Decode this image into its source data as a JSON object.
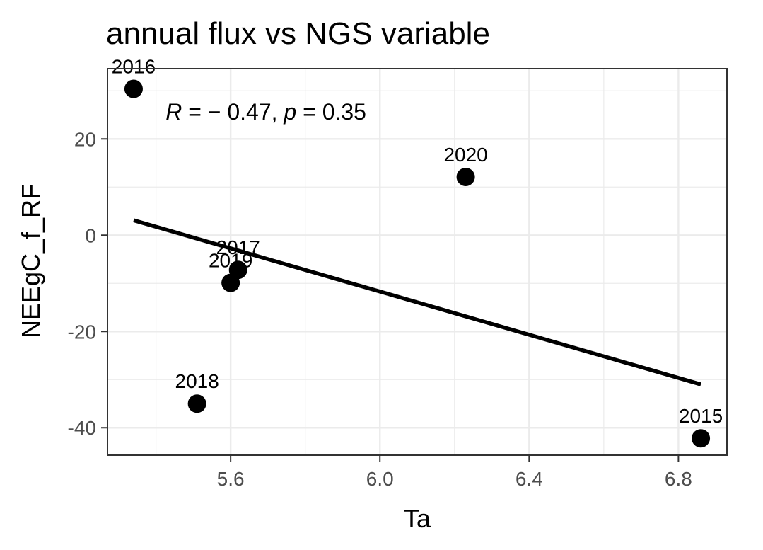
{
  "chart_data": {
    "type": "scatter",
    "title": "annual flux vs NGS variable",
    "xlabel": "Ta",
    "ylabel": "NEEgC_f_RF",
    "xlim": [
      5.27,
      6.93
    ],
    "ylim": [
      -45.7,
      34.6
    ],
    "x_ticks": [
      5.6,
      6.0,
      6.4,
      6.8
    ],
    "x_tick_labels": [
      "5.6",
      "6.0",
      "6.4",
      "6.8"
    ],
    "y_ticks": [
      -40,
      -20,
      0,
      20
    ],
    "y_tick_labels": [
      "-40",
      "-20",
      "0",
      "20"
    ],
    "grid": true,
    "points": [
      {
        "label": "2016",
        "x": 5.34,
        "y": 30.4
      },
      {
        "label": "2020",
        "x": 6.23,
        "y": 12.1
      },
      {
        "label": "2017",
        "x": 5.62,
        "y": -7.2
      },
      {
        "label": "2019",
        "x": 5.6,
        "y": -9.9
      },
      {
        "label": "2018",
        "x": 5.51,
        "y": -35.0
      },
      {
        "label": "2015",
        "x": 6.86,
        "y": -42.2
      }
    ],
    "fit_line": {
      "x": [
        5.34,
        6.86
      ],
      "y": [
        3.1,
        -31.0
      ]
    },
    "annotation": {
      "r_symbol": "R",
      "r_value": " = − 0.47, ",
      "p_symbol": "p",
      "p_value": " = 0.35",
      "x": 5.35,
      "y": 25.5
    },
    "point_color": "#000000",
    "line_color": "#000000",
    "grid_color": "#ebebeb",
    "panel_border_color": "#333333"
  }
}
